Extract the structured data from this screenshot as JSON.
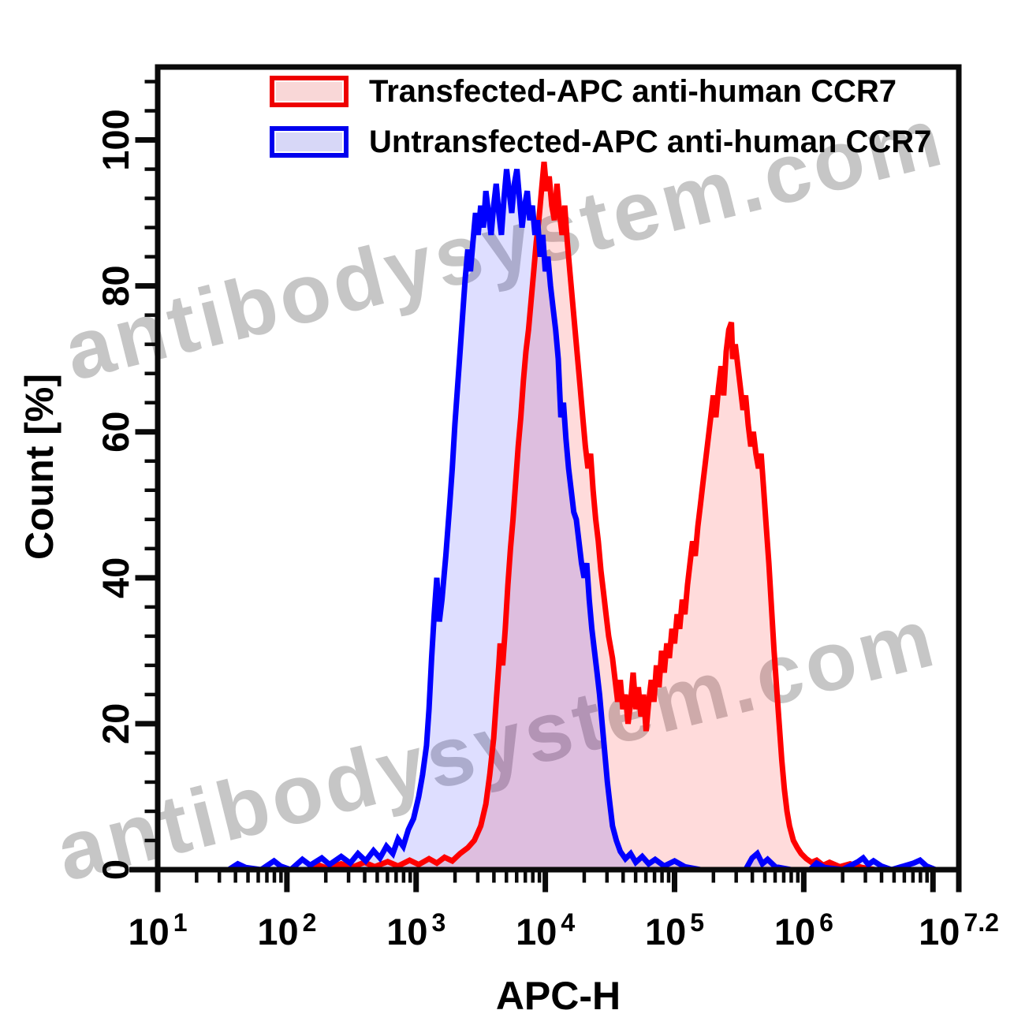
{
  "watermark": {
    "text": "antibodysystem.com",
    "color": "#c6c6c6"
  },
  "legend": {
    "items": [
      {
        "label": "Transfected-APC anti-human CCR7",
        "border_color": "#ee0000",
        "fill_color": "#f9d7d7"
      },
      {
        "label": "Untransfected-APC anti-human CCR7",
        "border_color": "#0000ee",
        "fill_color": "#d7d7f7"
      }
    ]
  },
  "chart_data": {
    "type": "area",
    "subtype": "flow-cytometry-histogram-overlay",
    "title": "",
    "xlabel": "APC-H",
    "ylabel": "Count [%]",
    "x_axis": {
      "scale": "log10",
      "min_exp": 1.0,
      "max_exp": 7.2,
      "labeled_ticks": [
        {
          "log": 1.0,
          "base": "10",
          "exp": "1"
        },
        {
          "log": 2.0,
          "base": "10",
          "exp": "2"
        },
        {
          "log": 3.0,
          "base": "10",
          "exp": "3"
        },
        {
          "log": 4.0,
          "base": "10",
          "exp": "4"
        },
        {
          "log": 5.0,
          "base": "10",
          "exp": "5"
        },
        {
          "log": 6.0,
          "base": "10",
          "exp": "6"
        },
        {
          "log": 7.2,
          "base": "10",
          "exp": "7.2"
        }
      ],
      "unlabeled_major_logs": [
        7.0
      ],
      "minor_mantissas": [
        2,
        3,
        4,
        5,
        6,
        7,
        8,
        9
      ]
    },
    "y_axis": {
      "min": 0,
      "max": 110,
      "major_ticks": [
        0,
        20,
        40,
        60,
        80,
        100
      ],
      "minor_step": 4,
      "minor_max": 108
    },
    "axis_color": "#0a0a0a",
    "series": [
      {
        "name": "Transfected-APC anti-human CCR7",
        "color": "#ff0000",
        "fill": "rgba(255,0,0,0.14)",
        "points": [
          [
            1.0,
            0
          ],
          [
            2.18,
            0
          ],
          [
            2.25,
            0.6
          ],
          [
            2.31,
            0.2
          ],
          [
            2.42,
            0.8
          ],
          [
            2.5,
            0.3
          ],
          [
            2.6,
            1
          ],
          [
            2.68,
            0.4
          ],
          [
            2.78,
            1.1
          ],
          [
            2.86,
            0.5
          ],
          [
            2.95,
            1.3
          ],
          [
            3.02,
            0.7
          ],
          [
            3.1,
            1.5
          ],
          [
            3.16,
            0.9
          ],
          [
            3.22,
            1.7
          ],
          [
            3.28,
            1.2
          ],
          [
            3.34,
            2.2
          ],
          [
            3.4,
            3
          ],
          [
            3.45,
            4
          ],
          [
            3.5,
            6
          ],
          [
            3.54,
            9
          ],
          [
            3.57,
            13
          ],
          [
            3.6,
            18
          ],
          [
            3.62,
            23
          ],
          [
            3.64,
            28
          ],
          [
            3.65,
            31
          ],
          [
            3.67,
            28
          ],
          [
            3.69,
            33
          ],
          [
            3.71,
            39
          ],
          [
            3.73,
            44
          ],
          [
            3.75,
            48
          ],
          [
            3.77,
            53
          ],
          [
            3.79,
            58
          ],
          [
            3.81,
            62
          ],
          [
            3.83,
            67
          ],
          [
            3.85,
            71
          ],
          [
            3.87,
            74
          ],
          [
            3.89,
            78
          ],
          [
            3.91,
            82
          ],
          [
            3.93,
            86
          ],
          [
            3.95,
            89
          ],
          [
            3.97,
            93
          ],
          [
            3.99,
            97
          ],
          [
            4.01,
            93
          ],
          [
            4.03,
            95
          ],
          [
            4.05,
            91
          ],
          [
            4.07,
            89
          ],
          [
            4.09,
            94
          ],
          [
            4.11,
            90
          ],
          [
            4.13,
            87
          ],
          [
            4.15,
            91
          ],
          [
            4.17,
            86
          ],
          [
            4.19,
            82
          ],
          [
            4.21,
            78
          ],
          [
            4.23,
            74
          ],
          [
            4.25,
            70
          ],
          [
            4.27,
            66
          ],
          [
            4.29,
            62
          ],
          [
            4.31,
            58
          ],
          [
            4.33,
            55
          ],
          [
            4.35,
            57
          ],
          [
            4.37,
            52
          ],
          [
            4.39,
            48
          ],
          [
            4.41,
            45
          ],
          [
            4.43,
            41
          ],
          [
            4.45,
            38
          ],
          [
            4.47,
            35
          ],
          [
            4.49,
            32
          ],
          [
            4.52,
            29
          ],
          [
            4.54,
            26
          ],
          [
            4.56,
            23
          ],
          [
            4.58,
            26
          ],
          [
            4.6,
            22
          ],
          [
            4.62,
            24
          ],
          [
            4.64,
            20
          ],
          [
            4.66,
            23
          ],
          [
            4.68,
            27
          ],
          [
            4.7,
            22
          ],
          [
            4.72,
            25
          ],
          [
            4.74,
            21
          ],
          [
            4.76,
            24
          ],
          [
            4.78,
            19
          ],
          [
            4.8,
            23
          ],
          [
            4.82,
            26
          ],
          [
            4.84,
            23
          ],
          [
            4.86,
            28
          ],
          [
            4.88,
            25
          ],
          [
            4.9,
            30
          ],
          [
            4.92,
            27
          ],
          [
            4.94,
            31
          ],
          [
            4.96,
            29
          ],
          [
            4.98,
            33
          ],
          [
            5.0,
            31
          ],
          [
            5.02,
            35
          ],
          [
            5.04,
            33
          ],
          [
            5.06,
            37
          ],
          [
            5.08,
            35
          ],
          [
            5.1,
            39
          ],
          [
            5.12,
            42
          ],
          [
            5.14,
            45
          ],
          [
            5.16,
            43
          ],
          [
            5.18,
            47
          ],
          [
            5.2,
            50
          ],
          [
            5.22,
            53
          ],
          [
            5.24,
            56
          ],
          [
            5.26,
            59
          ],
          [
            5.28,
            62
          ],
          [
            5.3,
            65
          ],
          [
            5.32,
            62
          ],
          [
            5.34,
            66
          ],
          [
            5.36,
            69
          ],
          [
            5.38,
            65
          ],
          [
            5.4,
            71
          ],
          [
            5.42,
            74
          ],
          [
            5.44,
            75
          ],
          [
            5.45,
            70
          ],
          [
            5.47,
            72
          ],
          [
            5.49,
            69
          ],
          [
            5.51,
            66
          ],
          [
            5.53,
            63
          ],
          [
            5.55,
            65
          ],
          [
            5.57,
            61
          ],
          [
            5.59,
            58
          ],
          [
            5.61,
            60
          ],
          [
            5.63,
            57
          ],
          [
            5.65,
            55
          ],
          [
            5.67,
            57
          ],
          [
            5.69,
            52
          ],
          [
            5.71,
            47
          ],
          [
            5.73,
            42
          ],
          [
            5.75,
            36
          ],
          [
            5.77,
            30
          ],
          [
            5.79,
            25
          ],
          [
            5.81,
            20
          ],
          [
            5.83,
            15
          ],
          [
            5.85,
            11
          ],
          [
            5.87,
            8
          ],
          [
            5.89,
            6
          ],
          [
            5.92,
            4
          ],
          [
            5.95,
            3
          ],
          [
            5.98,
            2.2
          ],
          [
            6.02,
            1.5
          ],
          [
            6.06,
            1
          ],
          [
            6.1,
            1.3
          ],
          [
            6.15,
            0.6
          ],
          [
            6.2,
            1
          ],
          [
            6.28,
            0.4
          ],
          [
            6.36,
            0.8
          ],
          [
            6.45,
            0.3
          ],
          [
            6.55,
            0
          ],
          [
            7.2,
            0
          ]
        ]
      },
      {
        "name": "Untransfected-APC anti-human CCR7",
        "color": "#0000ff",
        "fill": "rgba(0,0,255,0.13)",
        "points": [
          [
            1.0,
            0
          ],
          [
            1.55,
            0
          ],
          [
            1.62,
            0.8
          ],
          [
            1.68,
            0.3
          ],
          [
            1.8,
            0
          ],
          [
            1.9,
            1.2
          ],
          [
            1.95,
            0.5
          ],
          [
            2.03,
            0
          ],
          [
            2.12,
            1.4
          ],
          [
            2.18,
            0.6
          ],
          [
            2.27,
            1.6
          ],
          [
            2.33,
            0.7
          ],
          [
            2.42,
            1.8
          ],
          [
            2.49,
            0.9
          ],
          [
            2.55,
            2.2
          ],
          [
            2.61,
            1.2
          ],
          [
            2.67,
            2.6
          ],
          [
            2.72,
            1.6
          ],
          [
            2.77,
            3.2
          ],
          [
            2.82,
            2.2
          ],
          [
            2.86,
            4.2
          ],
          [
            2.9,
            3.2
          ],
          [
            2.94,
            5.5
          ],
          [
            2.98,
            7
          ],
          [
            3.02,
            10
          ],
          [
            3.05,
            13
          ],
          [
            3.08,
            17
          ],
          [
            3.1,
            22
          ],
          [
            3.12,
            29
          ],
          [
            3.14,
            35
          ],
          [
            3.16,
            40
          ],
          [
            3.18,
            34
          ],
          [
            3.2,
            37
          ],
          [
            3.23,
            43
          ],
          [
            3.26,
            50
          ],
          [
            3.28,
            55
          ],
          [
            3.3,
            61
          ],
          [
            3.32,
            66
          ],
          [
            3.34,
            71
          ],
          [
            3.36,
            76
          ],
          [
            3.38,
            81
          ],
          [
            3.4,
            85
          ],
          [
            3.42,
            82
          ],
          [
            3.44,
            86
          ],
          [
            3.46,
            90
          ],
          [
            3.48,
            87
          ],
          [
            3.5,
            91
          ],
          [
            3.52,
            88
          ],
          [
            3.54,
            93
          ],
          [
            3.56,
            90
          ],
          [
            3.58,
            87
          ],
          [
            3.6,
            91
          ],
          [
            3.62,
            94
          ],
          [
            3.64,
            90
          ],
          [
            3.66,
            87
          ],
          [
            3.68,
            92
          ],
          [
            3.7,
            96
          ],
          [
            3.72,
            93
          ],
          [
            3.74,
            90
          ],
          [
            3.76,
            94
          ],
          [
            3.78,
            96
          ],
          [
            3.8,
            92
          ],
          [
            3.82,
            88
          ],
          [
            3.84,
            91
          ],
          [
            3.86,
            93
          ],
          [
            3.88,
            89
          ],
          [
            3.9,
            91
          ],
          [
            3.92,
            87
          ],
          [
            3.94,
            89
          ],
          [
            3.96,
            84
          ],
          [
            3.98,
            87
          ],
          [
            4.0,
            82
          ],
          [
            4.02,
            84
          ],
          [
            4.04,
            80
          ],
          [
            4.06,
            77
          ],
          [
            4.08,
            74
          ],
          [
            4.1,
            70
          ],
          [
            4.12,
            62
          ],
          [
            4.14,
            64
          ],
          [
            4.16,
            59
          ],
          [
            4.18,
            55
          ],
          [
            4.2,
            52
          ],
          [
            4.22,
            49
          ],
          [
            4.24,
            48
          ],
          [
            4.26,
            45
          ],
          [
            4.28,
            42
          ],
          [
            4.3,
            40
          ],
          [
            4.32,
            42
          ],
          [
            4.34,
            37
          ],
          [
            4.36,
            33
          ],
          [
            4.38,
            30
          ],
          [
            4.4,
            27
          ],
          [
            4.42,
            24
          ],
          [
            4.44,
            20
          ],
          [
            4.46,
            16
          ],
          [
            4.48,
            12
          ],
          [
            4.5,
            9
          ],
          [
            4.52,
            6
          ],
          [
            4.55,
            4
          ],
          [
            4.58,
            2.5
          ],
          [
            4.62,
            1.5
          ],
          [
            4.66,
            2.2
          ],
          [
            4.7,
            1
          ],
          [
            4.75,
            1.8
          ],
          [
            4.8,
            0.8
          ],
          [
            4.85,
            1.4
          ],
          [
            4.92,
            0.5
          ],
          [
            5.0,
            1.2
          ],
          [
            5.08,
            0.4
          ],
          [
            5.2,
            0
          ],
          [
            5.55,
            0
          ],
          [
            5.6,
            1.6
          ],
          [
            5.64,
            2.2
          ],
          [
            5.68,
            0.8
          ],
          [
            5.72,
            1.4
          ],
          [
            5.78,
            0.4
          ],
          [
            5.9,
            0
          ],
          [
            6.05,
            0
          ],
          [
            6.1,
            0.9
          ],
          [
            6.16,
            0.3
          ],
          [
            6.3,
            0
          ],
          [
            6.42,
            1.1
          ],
          [
            6.46,
            1.6
          ],
          [
            6.5,
            0.7
          ],
          [
            6.54,
            1.2
          ],
          [
            6.6,
            0.5
          ],
          [
            6.68,
            0
          ],
          [
            6.85,
            0.9
          ],
          [
            6.9,
            1.3
          ],
          [
            6.95,
            0.5
          ],
          [
            7.02,
            0
          ],
          [
            7.2,
            0
          ]
        ]
      }
    ]
  }
}
